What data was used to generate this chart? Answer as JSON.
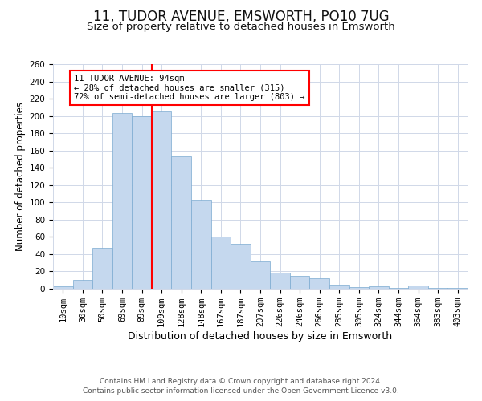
{
  "title": "11, TUDOR AVENUE, EMSWORTH, PO10 7UG",
  "subtitle": "Size of property relative to detached houses in Emsworth",
  "xlabel": "Distribution of detached houses by size in Emsworth",
  "ylabel": "Number of detached properties",
  "categories": [
    "10sqm",
    "30sqm",
    "50sqm",
    "69sqm",
    "89sqm",
    "109sqm",
    "128sqm",
    "148sqm",
    "167sqm",
    "187sqm",
    "207sqm",
    "226sqm",
    "246sqm",
    "266sqm",
    "285sqm",
    "305sqm",
    "324sqm",
    "344sqm",
    "364sqm",
    "383sqm",
    "403sqm"
  ],
  "values": [
    3,
    10,
    47,
    203,
    200,
    205,
    153,
    103,
    60,
    52,
    32,
    19,
    15,
    12,
    5,
    2,
    3,
    1,
    4,
    1,
    1
  ],
  "bar_color": "#c5d8ee",
  "bar_edge_color": "#7aaad0",
  "vline_x": 4.5,
  "vline_color": "red",
  "ylim": [
    0,
    260
  ],
  "yticks": [
    0,
    20,
    40,
    60,
    80,
    100,
    120,
    140,
    160,
    180,
    200,
    220,
    240,
    260
  ],
  "annotation_title": "11 TUDOR AVENUE: 94sqm",
  "annotation_line1": "← 28% of detached houses are smaller (315)",
  "annotation_line2": "72% of semi-detached houses are larger (803) →",
  "annotation_box_color": "#ffffff",
  "annotation_box_edge": "red",
  "footer1": "Contains HM Land Registry data © Crown copyright and database right 2024.",
  "footer2": "Contains public sector information licensed under the Open Government Licence v3.0.",
  "background_color": "#ffffff",
  "grid_color": "#d0d8e8",
  "title_fontsize": 12,
  "subtitle_fontsize": 9.5,
  "xlabel_fontsize": 9,
  "ylabel_fontsize": 8.5,
  "tick_fontsize": 7.5,
  "annotation_fontsize": 7.5,
  "footer_fontsize": 6.5
}
